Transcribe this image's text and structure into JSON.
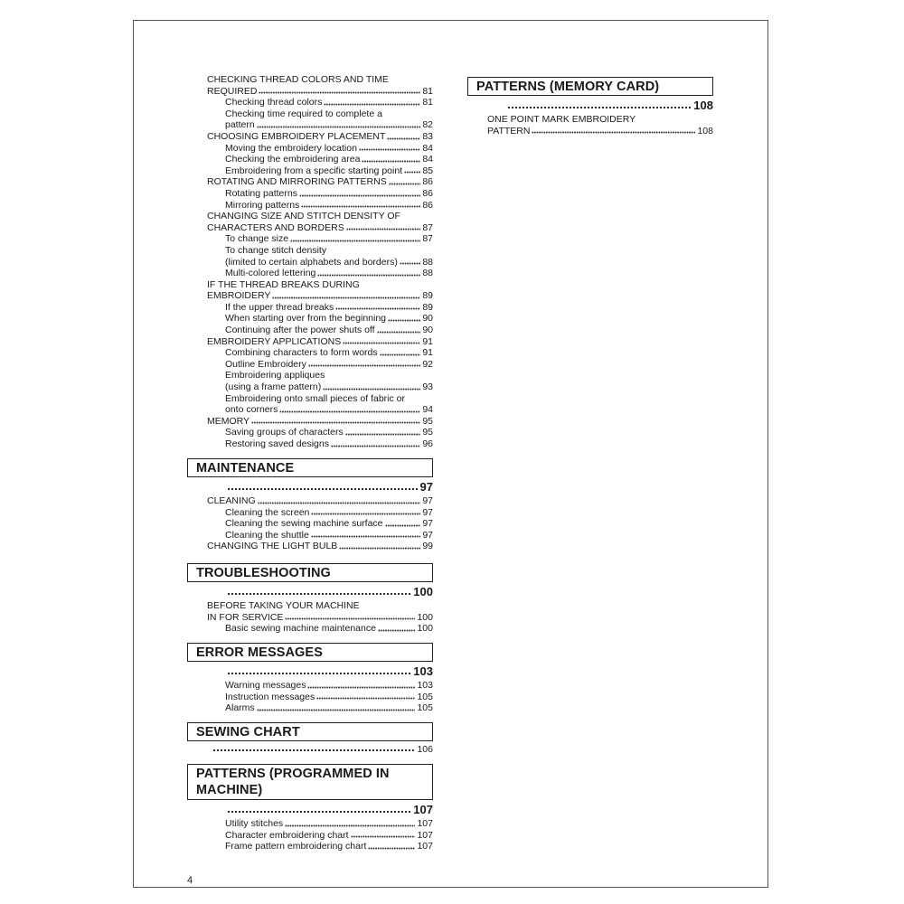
{
  "page_number": "4",
  "left_column": {
    "intro_entries": [
      {
        "level": 1,
        "lines": [
          "CHECKING THREAD COLORS AND TIME",
          "REQUIRED"
        ],
        "page": "81"
      },
      {
        "level": 2,
        "lines": [
          "Checking thread colors"
        ],
        "page": "81"
      },
      {
        "level": 2,
        "lines": [
          "Checking time required to complete a",
          "pattern"
        ],
        "page": "82"
      },
      {
        "level": 1,
        "lines": [
          "CHOOSING EMBROIDERY PLACEMENT"
        ],
        "page": "83"
      },
      {
        "level": 2,
        "lines": [
          "Moving the embroidery location"
        ],
        "page": "84"
      },
      {
        "level": 2,
        "lines": [
          "Checking the embroidering area"
        ],
        "page": "84"
      },
      {
        "level": 2,
        "lines": [
          "Embroidering from a specific starting point"
        ],
        "page": "85"
      },
      {
        "level": 1,
        "lines": [
          "ROTATING AND MIRRORING PATTERNS"
        ],
        "page": "86"
      },
      {
        "level": 2,
        "lines": [
          "Rotating patterns"
        ],
        "page": "86"
      },
      {
        "level": 2,
        "lines": [
          "Mirroring patterns"
        ],
        "page": "86"
      },
      {
        "level": 1,
        "lines": [
          "CHANGING SIZE AND STITCH DENSITY OF",
          "CHARACTERS AND BORDERS"
        ],
        "page": "87"
      },
      {
        "level": 2,
        "lines": [
          "To change size"
        ],
        "page": "87"
      },
      {
        "level": 2,
        "lines": [
          "To change stitch density",
          "(limited to certain alphabets and borders)"
        ],
        "page": "88"
      },
      {
        "level": 2,
        "lines": [
          "Multi-colored lettering"
        ],
        "page": "88"
      },
      {
        "level": 1,
        "lines": [
          "IF THE THREAD BREAKS DURING",
          "EMBROIDERY"
        ],
        "page": "89"
      },
      {
        "level": 2,
        "lines": [
          "If the upper thread breaks"
        ],
        "page": "89"
      },
      {
        "level": 2,
        "lines": [
          "When starting over from the beginning"
        ],
        "page": "90"
      },
      {
        "level": 2,
        "lines": [
          "Continuing after the power shuts off"
        ],
        "page": "90"
      },
      {
        "level": 1,
        "lines": [
          "EMBROIDERY APPLICATIONS"
        ],
        "page": "91"
      },
      {
        "level": 2,
        "lines": [
          "Combining characters to form words"
        ],
        "page": "91"
      },
      {
        "level": 2,
        "lines": [
          "Outline Embroidery"
        ],
        "page": "92"
      },
      {
        "level": 2,
        "lines": [
          "Embroidering appliques",
          "(using a frame pattern)"
        ],
        "page": "93"
      },
      {
        "level": 2,
        "lines": [
          "Embroidering onto small pieces of fabric or",
          "onto corners"
        ],
        "page": "94"
      },
      {
        "level": 1,
        "lines": [
          "MEMORY"
        ],
        "page": "95"
      },
      {
        "level": 2,
        "lines": [
          "Saving groups of characters"
        ],
        "page": "95"
      },
      {
        "level": 2,
        "lines": [
          "Restoring saved designs"
        ],
        "page": "96"
      }
    ],
    "sections": [
      {
        "title": "MAINTENANCE",
        "page": "97",
        "entries": [
          {
            "level": 1,
            "lines": [
              "CLEANING"
            ],
            "page": "97"
          },
          {
            "level": 2,
            "lines": [
              "Cleaning the screen"
            ],
            "page": "97"
          },
          {
            "level": 2,
            "lines": [
              "Cleaning the sewing machine surface"
            ],
            "page": "97"
          },
          {
            "level": 2,
            "lines": [
              "Cleaning the shuttle"
            ],
            "page": "97"
          },
          {
            "level": 1,
            "lines": [
              "CHANGING THE LIGHT BULB"
            ],
            "page": "99"
          }
        ]
      },
      {
        "title": "TROUBLESHOOTING",
        "page": "100",
        "entries": [
          {
            "level": 1,
            "lines": [
              "BEFORE TAKING YOUR MACHINE",
              "IN FOR SERVICE"
            ],
            "page": "100"
          },
          {
            "level": 2,
            "lines": [
              "Basic sewing machine maintenance"
            ],
            "page": "100"
          }
        ]
      },
      {
        "title": "ERROR MESSAGES",
        "page": "103",
        "entries": [
          {
            "level": 2,
            "lines": [
              "Warning messages"
            ],
            "page": "103"
          },
          {
            "level": 2,
            "lines": [
              "Instruction messages"
            ],
            "page": "105"
          },
          {
            "level": 2,
            "lines": [
              "Alarms"
            ],
            "page": "105"
          }
        ]
      },
      {
        "title": "SEWING CHART",
        "page": "106",
        "short": true,
        "entries": []
      },
      {
        "title": "PATTERNS (PROGRAMMED IN MACHINE)",
        "page": "107",
        "entries": [
          {
            "level": 2,
            "lines": [
              "Utility stitches"
            ],
            "page": "107"
          },
          {
            "level": 2,
            "lines": [
              "Character embroidering chart"
            ],
            "page": "107"
          },
          {
            "level": 2,
            "lines": [
              "Frame pattern embroidering chart"
            ],
            "page": "107"
          }
        ]
      }
    ]
  },
  "right_column": {
    "sections": [
      {
        "title": "PATTERNS (MEMORY CARD)",
        "page": "108",
        "entries": [
          {
            "level": 1,
            "lines": [
              "ONE POINT MARK EMBROIDERY",
              "PATTERN"
            ],
            "page": "108"
          }
        ]
      }
    ]
  }
}
